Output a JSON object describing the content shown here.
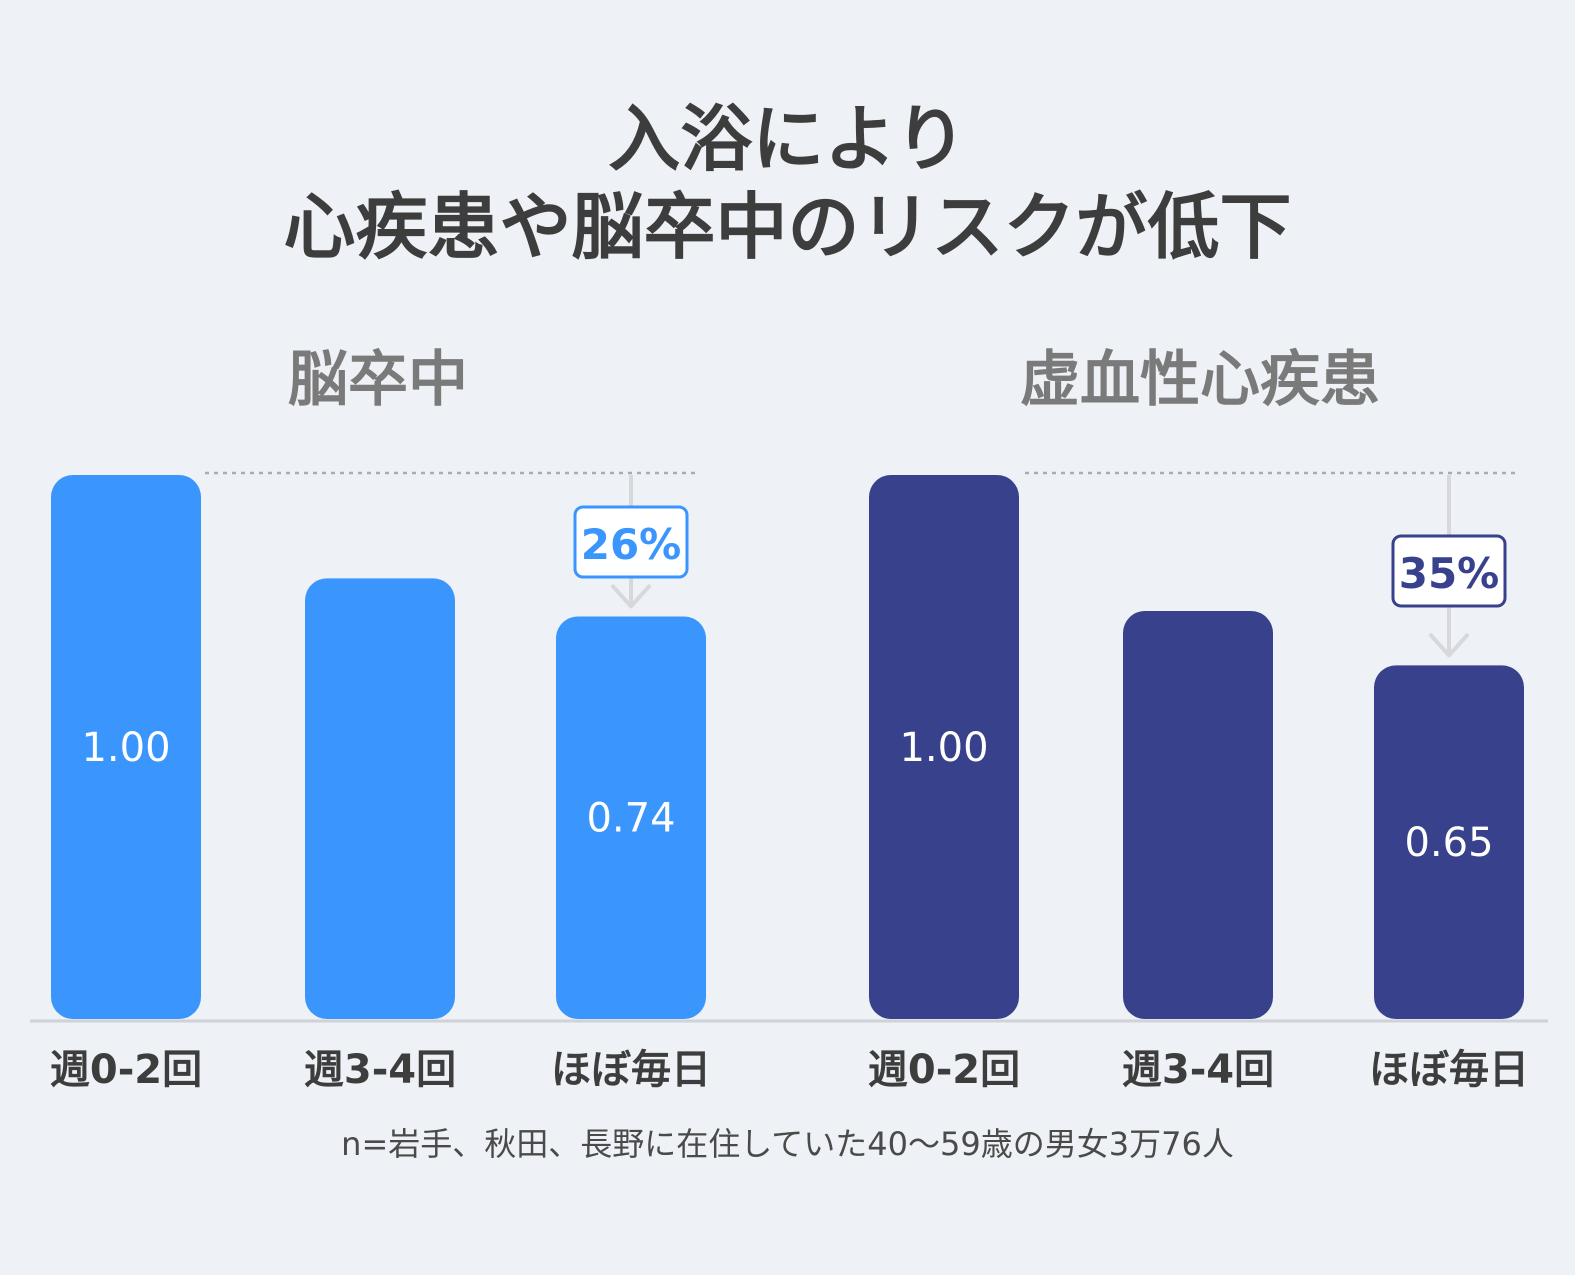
{
  "title": {
    "line1": "入浴により",
    "line2": "心疾患や脳卒中のリスクが低下"
  },
  "chart_data": [
    {
      "type": "bar",
      "title": "脳卒中",
      "categories": [
        "週0-2回",
        "週3-4回",
        "ほぼ毎日"
      ],
      "values": [
        1.0,
        0.81,
        0.74
      ],
      "value_labels": [
        "1.00",
        "",
        "0.74"
      ],
      "ylim": [
        0,
        1.0
      ],
      "color": "#3a95fd",
      "reduction_label": "26%"
    },
    {
      "type": "bar",
      "title": "虚血性心疾患",
      "categories": [
        "週0-2回",
        "週3-4回",
        "ほぼ毎日"
      ],
      "values": [
        1.0,
        0.75,
        0.65
      ],
      "value_labels": [
        "1.00",
        "",
        "0.65"
      ],
      "ylim": [
        0,
        1.0
      ],
      "color": "#38418c",
      "reduction_label": "35%"
    }
  ],
  "footnote": "n=岩手、秋田、長野に在住していた40〜59歳の男女3万76人"
}
